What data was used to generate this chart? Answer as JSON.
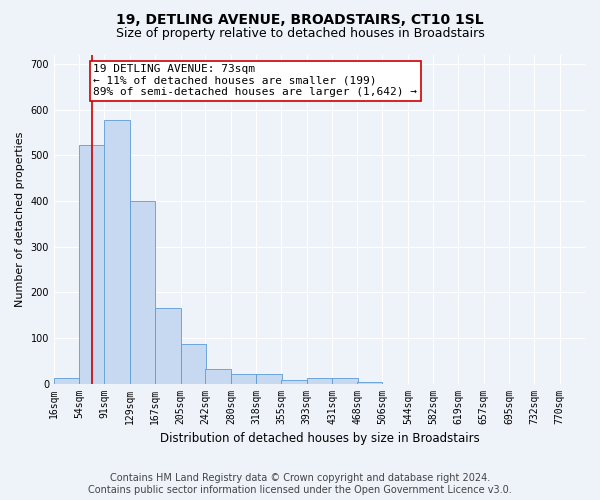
{
  "title": "19, DETLING AVENUE, BROADSTAIRS, CT10 1SL",
  "subtitle": "Size of property relative to detached houses in Broadstairs",
  "xlabel": "Distribution of detached houses by size in Broadstairs",
  "ylabel": "Number of detached properties",
  "bar_labels": [
    "16sqm",
    "54sqm",
    "91sqm",
    "129sqm",
    "167sqm",
    "205sqm",
    "242sqm",
    "280sqm",
    "318sqm",
    "355sqm",
    "393sqm",
    "431sqm",
    "468sqm",
    "506sqm",
    "544sqm",
    "582sqm",
    "619sqm",
    "657sqm",
    "695sqm",
    "732sqm",
    "770sqm"
  ],
  "bar_values": [
    13,
    522,
    578,
    400,
    165,
    87,
    32,
    20,
    21,
    8,
    12,
    12,
    4,
    0,
    0,
    0,
    0,
    0,
    0,
    0,
    0
  ],
  "bar_color": "#c6d9f0",
  "bar_edge_color": "#5b9bd5",
  "bin_edges": [
    16,
    54,
    91,
    129,
    167,
    205,
    242,
    280,
    318,
    355,
    393,
    431,
    468,
    506,
    544,
    582,
    619,
    657,
    695,
    732,
    770
  ],
  "bin_width": 38,
  "property_size": 73,
  "annotation_text_line1": "19 DETLING AVENUE: 73sqm",
  "annotation_text_line2": "← 11% of detached houses are smaller (199)",
  "annotation_text_line3": "89% of semi-detached houses are larger (1,642) →",
  "annotation_box_color": "#ffffff",
  "annotation_border_color": "#cc0000",
  "vline_color": "#cc0000",
  "ylim": [
    0,
    720
  ],
  "yticks": [
    0,
    100,
    200,
    300,
    400,
    500,
    600,
    700
  ],
  "footer_line1": "Contains HM Land Registry data © Crown copyright and database right 2024.",
  "footer_line2": "Contains public sector information licensed under the Open Government Licence v3.0.",
  "background_color": "#eef2f9",
  "plot_bg_color": "#eef2f9",
  "grid_color": "#ffffff",
  "title_fontsize": 10,
  "subtitle_fontsize": 9,
  "xlabel_fontsize": 8.5,
  "ylabel_fontsize": 8,
  "tick_fontsize": 7,
  "footer_fontsize": 7,
  "annotation_fontsize": 8
}
